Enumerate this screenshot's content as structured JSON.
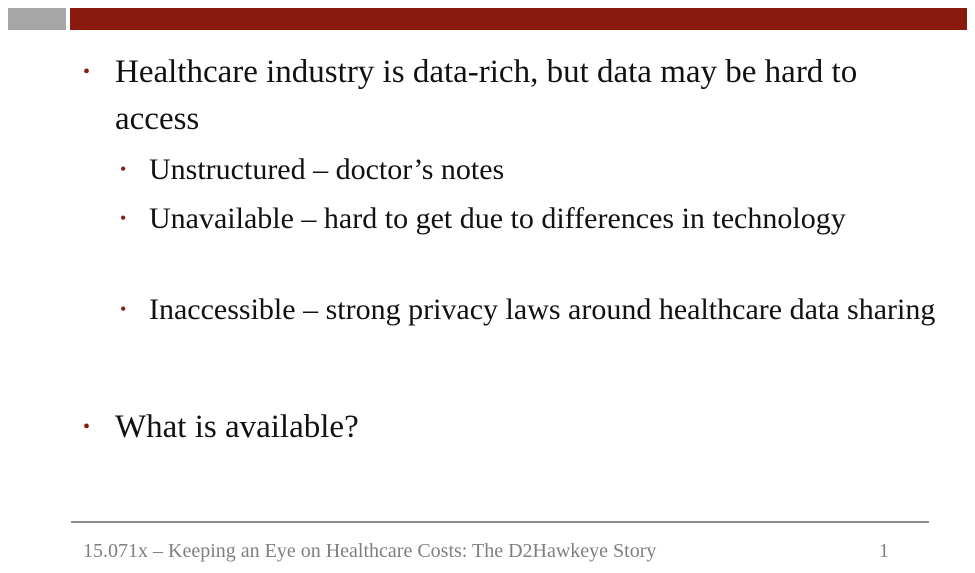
{
  "header": {
    "accent_gray": "#a6a6a6",
    "accent_red": "#8b1a0e"
  },
  "bullets": [
    {
      "level": 1,
      "text": "Healthcare industry is data-rich, but data may be hard to access"
    },
    {
      "level": 2,
      "text": "Unstructured – doctor’s notes"
    },
    {
      "level": 2,
      "text": "Unavailable – hard to get due to differences in technology"
    },
    {
      "level": 2,
      "text": "Inaccessible – strong privacy laws around healthcare data sharing"
    },
    {
      "level": 1,
      "text": "What is available?"
    }
  ],
  "footer": {
    "text": "15.071x – Keeping an Eye on Healthcare Costs: The D2Hawkeye Story",
    "page_number": "1"
  }
}
